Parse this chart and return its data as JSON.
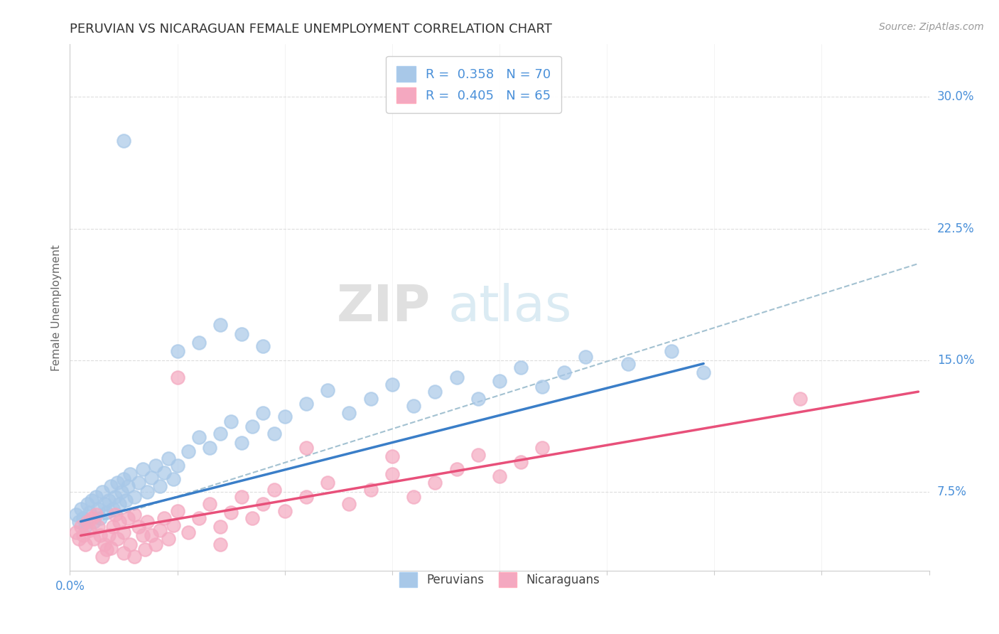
{
  "title": "PERUVIAN VS NICARAGUAN FEMALE UNEMPLOYMENT CORRELATION CHART",
  "source": "Source: ZipAtlas.com",
  "ylabel": "Female Unemployment",
  "ytick_labels": [
    "7.5%",
    "15.0%",
    "22.5%",
    "30.0%"
  ],
  "ytick_values": [
    0.075,
    0.15,
    0.225,
    0.3
  ],
  "xmin": 0.0,
  "xmax": 0.4,
  "ymin": 0.03,
  "ymax": 0.33,
  "peruvian_color": "#a8c8e8",
  "nicaraguan_color": "#f4a8c0",
  "legend_text_color": "#4a90d9",
  "peruvian_line_color": "#3a7ec8",
  "nicaraguan_line_color": "#e8507a",
  "dashed_line_color": "#99bbcc",
  "watermark_zip": "ZIP",
  "watermark_atlas": "atlas",
  "peruvian_line_x": [
    0.005,
    0.295
  ],
  "peruvian_line_y": [
    0.058,
    0.148
  ],
  "nicaraguan_line_x": [
    0.005,
    0.395
  ],
  "nicaraguan_line_y": [
    0.05,
    0.132
  ],
  "dashed_line_x": [
    0.005,
    0.395
  ],
  "dashed_line_y": [
    0.055,
    0.205
  ],
  "peruvian_scatter": [
    [
      0.003,
      0.062
    ],
    [
      0.004,
      0.058
    ],
    [
      0.005,
      0.065
    ],
    [
      0.006,
      0.06
    ],
    [
      0.007,
      0.055
    ],
    [
      0.008,
      0.068
    ],
    [
      0.009,
      0.063
    ],
    [
      0.01,
      0.07
    ],
    [
      0.011,
      0.058
    ],
    [
      0.012,
      0.072
    ],
    [
      0.013,
      0.065
    ],
    [
      0.014,
      0.06
    ],
    [
      0.015,
      0.075
    ],
    [
      0.016,
      0.068
    ],
    [
      0.017,
      0.063
    ],
    [
      0.018,
      0.07
    ],
    [
      0.019,
      0.078
    ],
    [
      0.02,
      0.065
    ],
    [
      0.021,
      0.072
    ],
    [
      0.022,
      0.08
    ],
    [
      0.023,
      0.068
    ],
    [
      0.024,
      0.075
    ],
    [
      0.025,
      0.082
    ],
    [
      0.026,
      0.07
    ],
    [
      0.027,
      0.078
    ],
    [
      0.028,
      0.085
    ],
    [
      0.03,
      0.072
    ],
    [
      0.032,
      0.08
    ],
    [
      0.034,
      0.088
    ],
    [
      0.036,
      0.075
    ],
    [
      0.038,
      0.083
    ],
    [
      0.04,
      0.09
    ],
    [
      0.042,
      0.078
    ],
    [
      0.044,
      0.086
    ],
    [
      0.046,
      0.094
    ],
    [
      0.048,
      0.082
    ],
    [
      0.05,
      0.09
    ],
    [
      0.055,
      0.098
    ],
    [
      0.06,
      0.106
    ],
    [
      0.065,
      0.1
    ],
    [
      0.07,
      0.108
    ],
    [
      0.075,
      0.115
    ],
    [
      0.08,
      0.103
    ],
    [
      0.085,
      0.112
    ],
    [
      0.09,
      0.12
    ],
    [
      0.095,
      0.108
    ],
    [
      0.1,
      0.118
    ],
    [
      0.11,
      0.125
    ],
    [
      0.12,
      0.133
    ],
    [
      0.13,
      0.12
    ],
    [
      0.14,
      0.128
    ],
    [
      0.15,
      0.136
    ],
    [
      0.16,
      0.124
    ],
    [
      0.17,
      0.132
    ],
    [
      0.18,
      0.14
    ],
    [
      0.19,
      0.128
    ],
    [
      0.2,
      0.138
    ],
    [
      0.21,
      0.146
    ],
    [
      0.22,
      0.135
    ],
    [
      0.23,
      0.143
    ],
    [
      0.24,
      0.152
    ],
    [
      0.26,
      0.148
    ],
    [
      0.28,
      0.155
    ],
    [
      0.295,
      0.143
    ],
    [
      0.06,
      0.16
    ],
    [
      0.07,
      0.17
    ],
    [
      0.08,
      0.165
    ],
    [
      0.025,
      0.275
    ],
    [
      0.05,
      0.155
    ],
    [
      0.09,
      0.158
    ]
  ],
  "nicaraguan_scatter": [
    [
      0.003,
      0.052
    ],
    [
      0.004,
      0.048
    ],
    [
      0.005,
      0.055
    ],
    [
      0.006,
      0.05
    ],
    [
      0.007,
      0.045
    ],
    [
      0.008,
      0.058
    ],
    [
      0.009,
      0.053
    ],
    [
      0.01,
      0.06
    ],
    [
      0.011,
      0.048
    ],
    [
      0.012,
      0.062
    ],
    [
      0.013,
      0.055
    ],
    [
      0.014,
      0.05
    ],
    [
      0.015,
      0.038
    ],
    [
      0.016,
      0.045
    ],
    [
      0.017,
      0.042
    ],
    [
      0.018,
      0.05
    ],
    [
      0.019,
      0.043
    ],
    [
      0.02,
      0.055
    ],
    [
      0.021,
      0.062
    ],
    [
      0.022,
      0.048
    ],
    [
      0.023,
      0.058
    ],
    [
      0.025,
      0.052
    ],
    [
      0.027,
      0.06
    ],
    [
      0.028,
      0.045
    ],
    [
      0.03,
      0.062
    ],
    [
      0.032,
      0.055
    ],
    [
      0.034,
      0.05
    ],
    [
      0.035,
      0.042
    ],
    [
      0.036,
      0.058
    ],
    [
      0.038,
      0.05
    ],
    [
      0.04,
      0.045
    ],
    [
      0.042,
      0.053
    ],
    [
      0.044,
      0.06
    ],
    [
      0.046,
      0.048
    ],
    [
      0.048,
      0.056
    ],
    [
      0.05,
      0.064
    ],
    [
      0.055,
      0.052
    ],
    [
      0.06,
      0.06
    ],
    [
      0.065,
      0.068
    ],
    [
      0.07,
      0.055
    ],
    [
      0.075,
      0.063
    ],
    [
      0.08,
      0.072
    ],
    [
      0.085,
      0.06
    ],
    [
      0.09,
      0.068
    ],
    [
      0.095,
      0.076
    ],
    [
      0.1,
      0.064
    ],
    [
      0.11,
      0.072
    ],
    [
      0.12,
      0.08
    ],
    [
      0.13,
      0.068
    ],
    [
      0.14,
      0.076
    ],
    [
      0.15,
      0.085
    ],
    [
      0.16,
      0.072
    ],
    [
      0.17,
      0.08
    ],
    [
      0.18,
      0.088
    ],
    [
      0.19,
      0.096
    ],
    [
      0.2,
      0.084
    ],
    [
      0.21,
      0.092
    ],
    [
      0.22,
      0.1
    ],
    [
      0.05,
      0.14
    ],
    [
      0.11,
      0.1
    ],
    [
      0.34,
      0.128
    ],
    [
      0.15,
      0.095
    ],
    [
      0.07,
      0.045
    ],
    [
      0.03,
      0.038
    ],
    [
      0.025,
      0.04
    ]
  ]
}
